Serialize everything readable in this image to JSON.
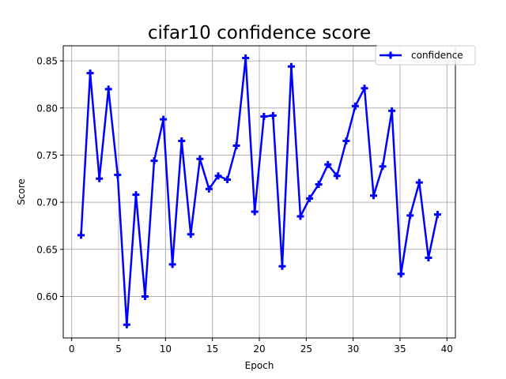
{
  "chart_data": {
    "type": "line",
    "title": "cifar10 confidence score",
    "xlabel": "Epoch",
    "ylabel": "Score",
    "xlim": [
      -0.9,
      40.9
    ],
    "ylim": [
      0.556,
      0.866
    ],
    "xticks": [
      0,
      5,
      10,
      15,
      20,
      25,
      30,
      35,
      40
    ],
    "yticks": [
      0.6,
      0.65,
      0.7,
      0.75,
      0.8,
      0.85
    ],
    "xtick_labels": [
      "0",
      "5",
      "10",
      "15",
      "20",
      "25",
      "30",
      "35",
      "40"
    ],
    "ytick_labels": [
      "0.60",
      "0.65",
      "0.70",
      "0.75",
      "0.80",
      "0.85"
    ],
    "grid": true,
    "legend_position": "top-right",
    "series": [
      {
        "name": "confidence",
        "color": "#0000ff",
        "marker": "plus",
        "x": [
          1.0,
          1.97,
          2.95,
          3.92,
          4.9,
          5.87,
          6.85,
          7.82,
          8.79,
          9.77,
          10.74,
          11.72,
          12.69,
          13.67,
          14.64,
          15.62,
          16.59,
          17.56,
          18.54,
          19.51,
          20.49,
          21.46,
          22.44,
          23.41,
          24.38,
          25.36,
          26.33,
          27.31,
          28.28,
          29.26,
          30.23,
          31.21,
          32.18,
          33.15,
          34.13,
          35.1,
          36.08,
          37.05,
          38.03,
          39.0
        ],
        "values": [
          0.665,
          0.837,
          0.725,
          0.82,
          0.729,
          0.57,
          0.708,
          0.6,
          0.744,
          0.788,
          0.634,
          0.765,
          0.666,
          0.746,
          0.714,
          0.728,
          0.724,
          0.76,
          0.853,
          0.69,
          0.791,
          0.792,
          0.632,
          0.844,
          0.685,
          0.704,
          0.719,
          0.74,
          0.728,
          0.765,
          0.802,
          0.821,
          0.707,
          0.738,
          0.797,
          0.624,
          0.686,
          0.721,
          0.641,
          0.687
        ]
      }
    ]
  }
}
